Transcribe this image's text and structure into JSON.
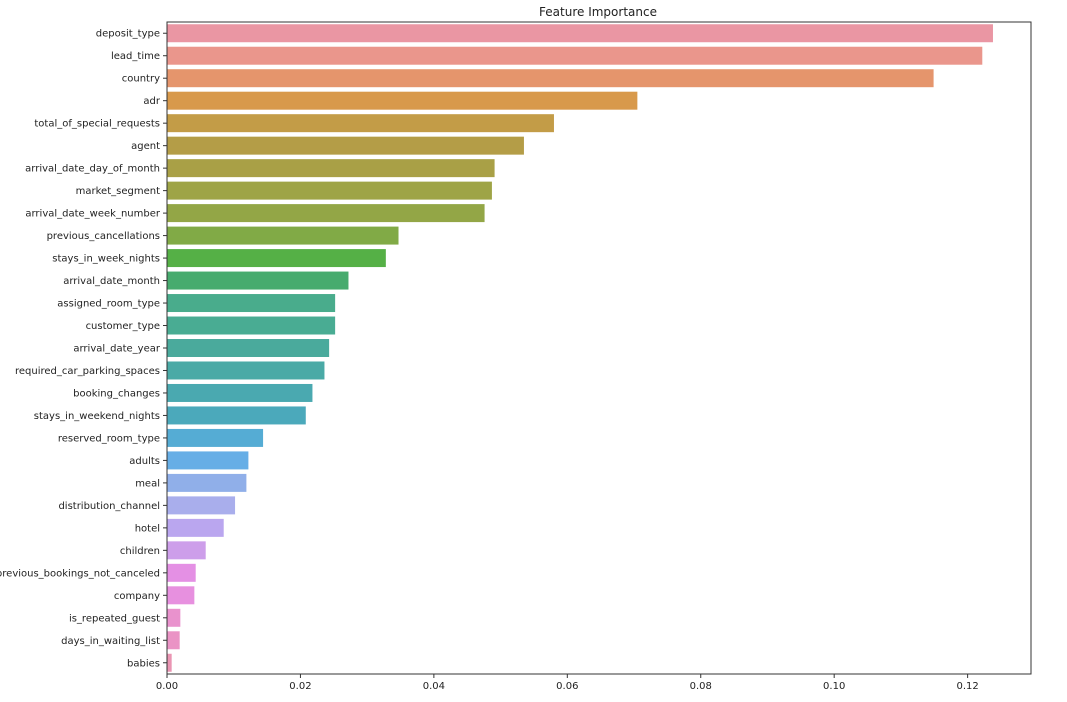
{
  "chart_data": {
    "type": "bar",
    "orientation": "horizontal",
    "title": "Feature Importance",
    "xlabel": "",
    "ylabel": "",
    "xlim": [
      0,
      0.1295
    ],
    "grid": false,
    "x_ticks": [
      "0.00",
      "0.02",
      "0.04",
      "0.06",
      "0.08",
      "0.10",
      "0.12"
    ],
    "categories": [
      "deposit_type",
      "lead_time",
      "country",
      "adr",
      "total_of_special_requests",
      "agent",
      "arrival_date_day_of_month",
      "market_segment",
      "arrival_date_week_number",
      "previous_cancellations",
      "stays_in_week_nights",
      "arrival_date_month",
      "assigned_room_type",
      "customer_type",
      "arrival_date_year",
      "required_car_parking_spaces",
      "booking_changes",
      "stays_in_weekend_nights",
      "reserved_room_type",
      "adults",
      "meal",
      "distribution_channel",
      "hotel",
      "children",
      "previous_bookings_not_canceled",
      "company",
      "is_repeated_guest",
      "days_in_waiting_list",
      "babies"
    ],
    "values": [
      0.1238,
      0.1222,
      0.1149,
      0.0705,
      0.058,
      0.0535,
      0.0491,
      0.0487,
      0.0476,
      0.0347,
      0.0328,
      0.0272,
      0.0252,
      0.0252,
      0.0243,
      0.0236,
      0.0218,
      0.0208,
      0.0144,
      0.0122,
      0.0119,
      0.0102,
      0.0085,
      0.0058,
      0.0043,
      0.0041,
      0.002,
      0.0019,
      0.0007
    ],
    "colors": [
      "#ea96a3",
      "#ea968c",
      "#e5956c",
      "#d8994b",
      "#c39c47",
      "#b49d47",
      "#a9a046",
      "#9ea446",
      "#93a646",
      "#81aa46",
      "#55b046",
      "#47ab6e",
      "#49ac8c",
      "#49ac93",
      "#4aaa9c",
      "#4aaaa6",
      "#4aa9b0",
      "#4ba9bb",
      "#55acd4",
      "#66aee6",
      "#90afe9",
      "#a9aeec",
      "#baa6ef",
      "#cd9eea",
      "#e490e4",
      "#e790df",
      "#e992cd",
      "#ea93c5",
      "#ea95b3"
    ]
  }
}
